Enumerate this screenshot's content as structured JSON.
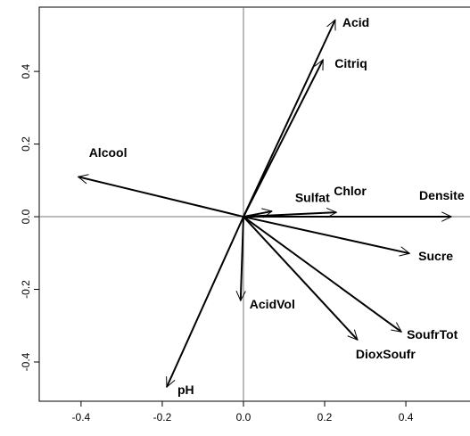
{
  "chart_data": {
    "type": "biplot",
    "vectors": [
      {
        "name": "Acid",
        "x": 0.226,
        "y": 0.542
      },
      {
        "name": "Citriq",
        "x": 0.196,
        "y": 0.432
      },
      {
        "name": "Alcool",
        "x": -0.407,
        "y": 0.11
      },
      {
        "name": "Sulfat",
        "x": 0.07,
        "y": 0.015
      },
      {
        "name": "Chlor",
        "x": 0.229,
        "y": 0.012
      },
      {
        "name": "Densite",
        "x": 0.512,
        "y": 0.0
      },
      {
        "name": "Sucre",
        "x": 0.409,
        "y": -0.101
      },
      {
        "name": "SoufrTot",
        "x": 0.389,
        "y": -0.317
      },
      {
        "name": "DioxSoufr",
        "x": 0.281,
        "y": -0.339
      },
      {
        "name": "AcidVol",
        "x": -0.007,
        "y": -0.231
      },
      {
        "name": "pH",
        "x": -0.189,
        "y": -0.469
      }
    ],
    "xlim": [
      -0.503,
      0.558
    ],
    "ylim": [
      -0.508,
      0.577
    ],
    "xticks": [
      -0.4,
      -0.2,
      {
        "value": 0,
        "label": "0.0"
      },
      0.2,
      0.4
    ],
    "yticks": [
      -0.4,
      -0.2,
      {
        "value": 0,
        "label": "0.0"
      },
      0.2,
      0.4
    ],
    "color": "#000000"
  }
}
